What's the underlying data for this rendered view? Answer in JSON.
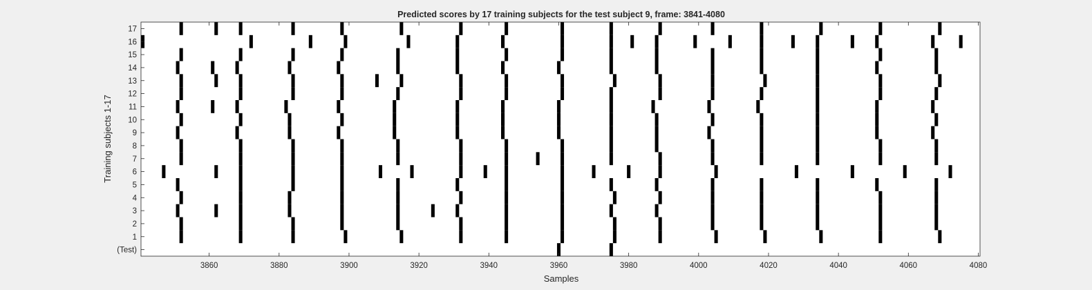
{
  "figure": {
    "background": "#f0f0f0",
    "axes_background": "#ffffff",
    "mark_color": "#000000"
  },
  "chart_data": {
    "type": "heatmap",
    "title": "Predicted scores by 17 training subjects for the test subject 9, frame: 3841-4080",
    "xlabel": "Samples",
    "ylabel": "Training subjects 1-17",
    "xlim": [
      3841,
      4080
    ],
    "x_ticks": [
      3860,
      3880,
      3900,
      3920,
      3940,
      3960,
      3980,
      4000,
      4020,
      4040,
      4060,
      4080
    ],
    "y_ticks": [
      "(Test)",
      "1",
      "2",
      "3",
      "4",
      "5",
      "6",
      "7",
      "8",
      "9",
      "10",
      "11",
      "12",
      "13",
      "14",
      "15",
      "16",
      "17"
    ],
    "grid": false,
    "legend": "none",
    "rows": [
      {
        "label": "(Test)",
        "samples": [
          3960,
          3975
        ]
      },
      {
        "label": "1",
        "samples": [
          3852,
          3869,
          3884,
          3899,
          3915,
          3932,
          3945,
          3961,
          3976,
          3989,
          4005,
          4019,
          4035,
          4052,
          4069
        ]
      },
      {
        "label": "2",
        "samples": [
          3852,
          3869,
          3884,
          3898,
          3914,
          3932,
          3945,
          3961,
          3976,
          3989,
          4004,
          4018,
          4034,
          4052,
          4068
        ]
      },
      {
        "label": "3",
        "samples": [
          3851,
          3862,
          3869,
          3883,
          3898,
          3914,
          3924,
          3931,
          3945,
          3961,
          3975,
          3988,
          4004,
          4018,
          4034,
          4052,
          4068
        ]
      },
      {
        "label": "4",
        "samples": [
          3852,
          3869,
          3883,
          3898,
          3914,
          3932,
          3945,
          3961,
          3976,
          3989,
          4004,
          4018,
          4034,
          4052,
          4068
        ]
      },
      {
        "label": "5",
        "samples": [
          3851,
          3869,
          3884,
          3898,
          3914,
          3931,
          3945,
          3961,
          3975,
          3988,
          4004,
          4018,
          4034,
          4051,
          4068
        ]
      },
      {
        "label": "6",
        "samples": [
          3847,
          3862,
          3869,
          3884,
          3898,
          3909,
          3918,
          3932,
          3939,
          3945,
          3961,
          3970,
          3980,
          3989,
          4005,
          4028,
          4044,
          4059,
          4072
        ]
      },
      {
        "label": "7",
        "samples": [
          3852,
          3869,
          3884,
          3898,
          3914,
          3932,
          3945,
          3954,
          3961,
          3975,
          3989,
          4004,
          4018,
          4034,
          4052,
          4068
        ]
      },
      {
        "label": "8",
        "samples": [
          3852,
          3869,
          3884,
          3898,
          3914,
          3932,
          3945,
          3961,
          3975,
          3988,
          4004,
          4018,
          4034,
          4052,
          4068
        ]
      },
      {
        "label": "9",
        "samples": [
          3851,
          3868,
          3883,
          3897,
          3913,
          3931,
          3944,
          3960,
          3975,
          3988,
          4003,
          4018,
          4034,
          4051,
          4067
        ]
      },
      {
        "label": "10",
        "samples": [
          3852,
          3869,
          3883,
          3898,
          3913,
          3931,
          3944,
          3960,
          3975,
          3988,
          4004,
          4018,
          4034,
          4051,
          4068
        ]
      },
      {
        "label": "11",
        "samples": [
          3851,
          3861,
          3868,
          3882,
          3897,
          3913,
          3931,
          3944,
          3960,
          3975,
          3987,
          4003,
          4017,
          4034,
          4051,
          4067
        ]
      },
      {
        "label": "12",
        "samples": [
          3852,
          3869,
          3884,
          3898,
          3914,
          3932,
          3945,
          3961,
          3975,
          3989,
          4004,
          4018,
          4034,
          4052,
          4068
        ]
      },
      {
        "label": "13",
        "samples": [
          3852,
          3862,
          3869,
          3884,
          3898,
          3908,
          3915,
          3932,
          3945,
          3961,
          3976,
          3989,
          4004,
          4019,
          4034,
          4052,
          4069
        ]
      },
      {
        "label": "14",
        "samples": [
          3851,
          3861,
          3868,
          3883,
          3897,
          3914,
          3931,
          3944,
          3960,
          3975,
          3988,
          4004,
          4018,
          4034,
          4051,
          4068
        ]
      },
      {
        "label": "15",
        "samples": [
          3852,
          3869,
          3884,
          3898,
          3914,
          3931,
          3945,
          3961,
          3975,
          3988,
          4004,
          4018,
          4034,
          4052,
          4068
        ]
      },
      {
        "label": "16",
        "samples": [
          3841,
          3872,
          3889,
          3899,
          3917,
          3931,
          3944,
          3961,
          3975,
          3981,
          3988,
          3999,
          4009,
          4018,
          4027,
          4034,
          4044,
          4051,
          4067,
          4075
        ]
      },
      {
        "label": "17",
        "samples": [
          3852,
          3862,
          3869,
          3884,
          3898,
          3915,
          3932,
          3945,
          3961,
          3975,
          3989,
          4004,
          4018,
          4035,
          4052,
          4069
        ]
      }
    ]
  }
}
